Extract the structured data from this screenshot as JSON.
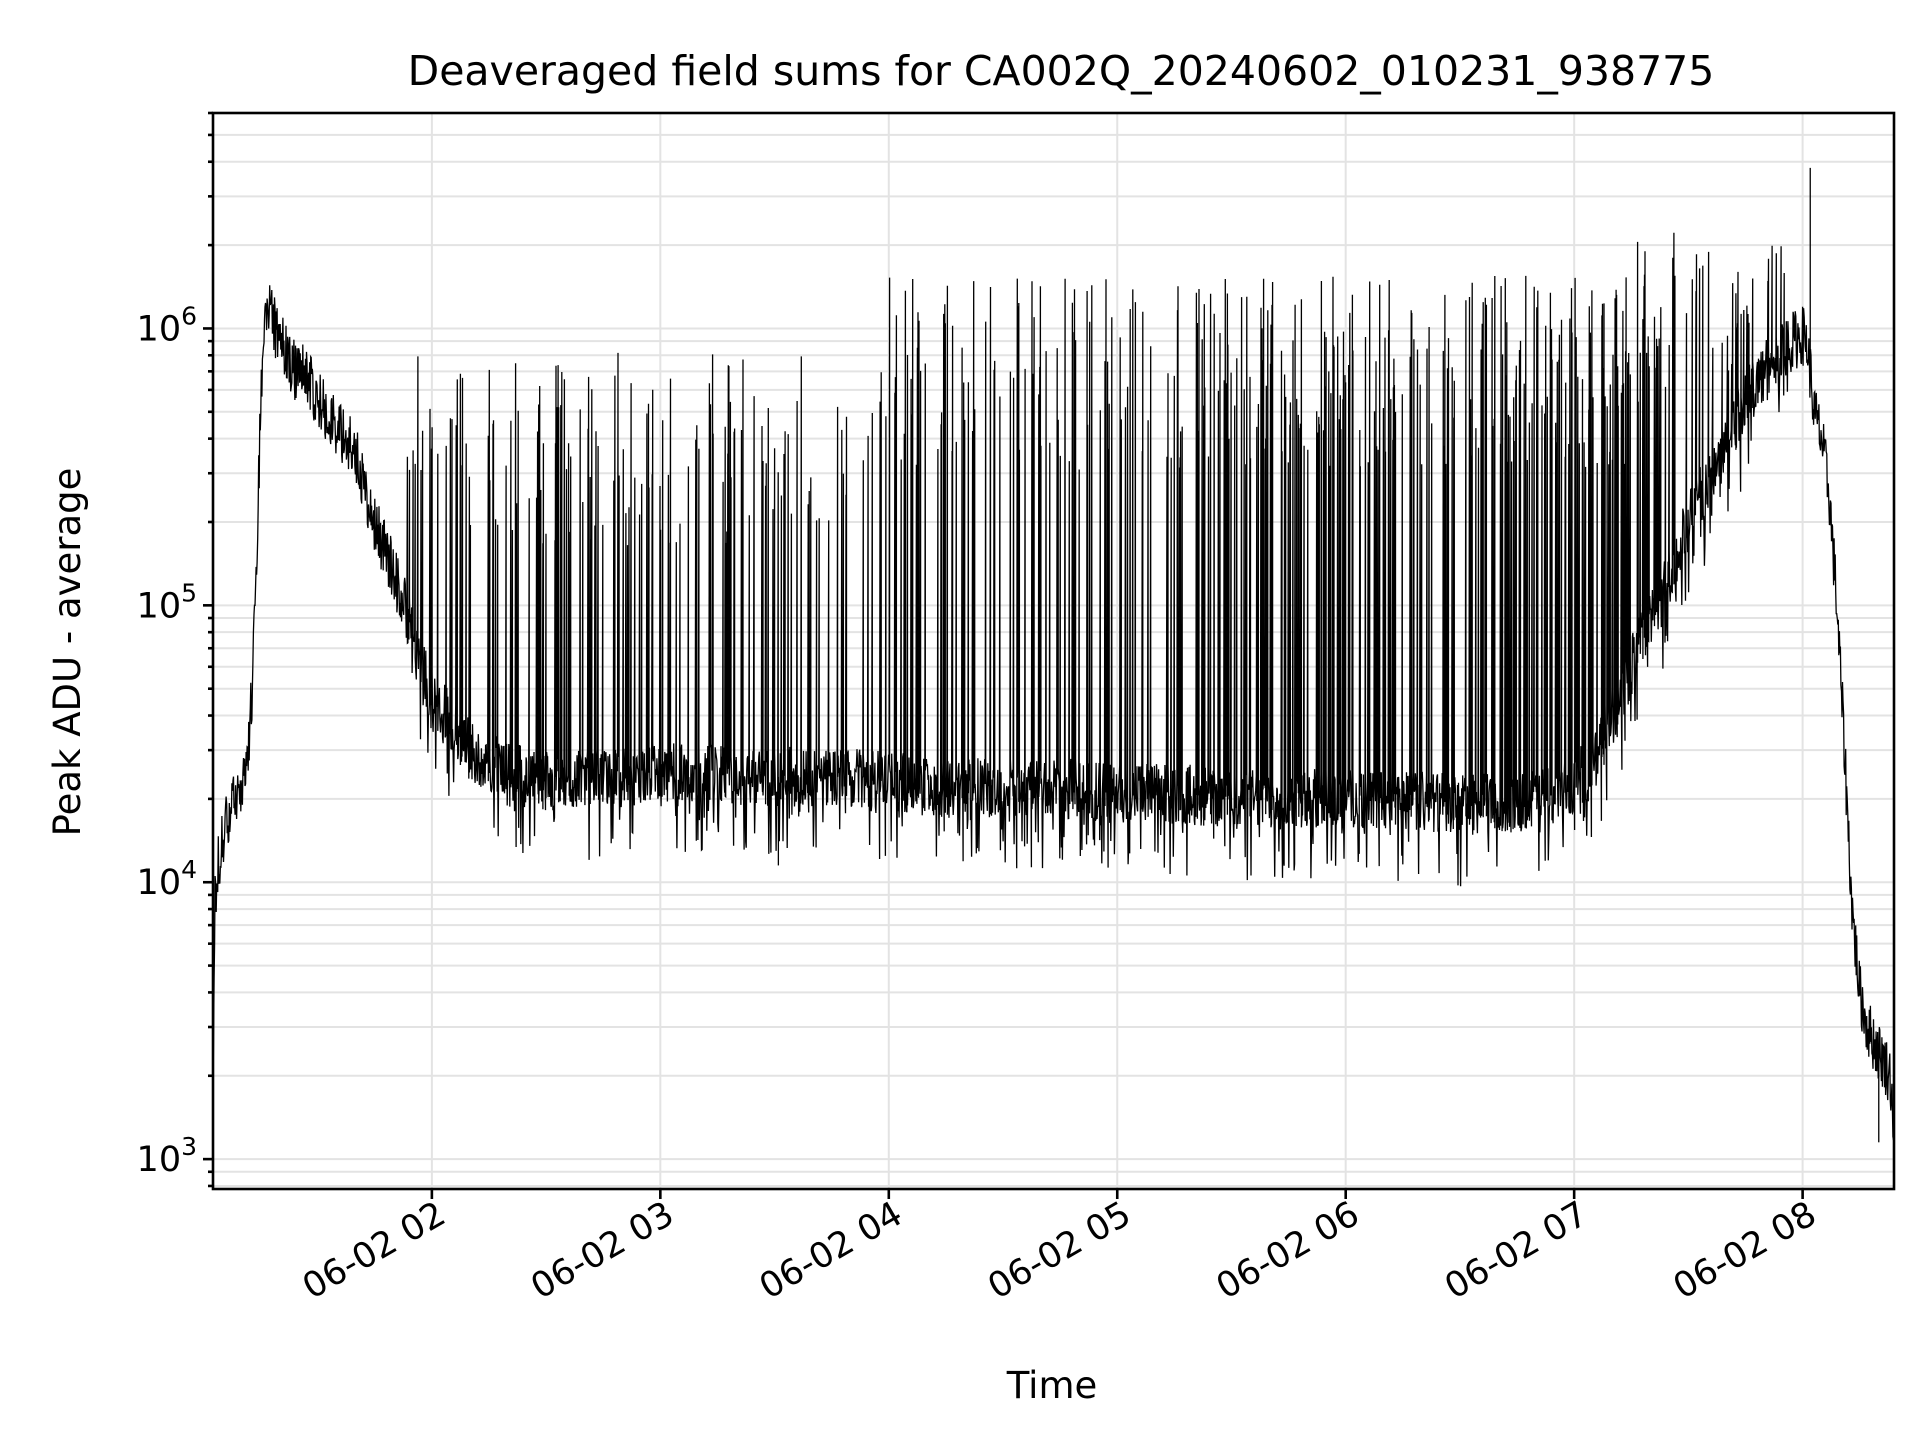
{
  "chart_data": {
    "type": "line",
    "title": "Deaveraged field sums for CA002Q_20240602_010231_938775",
    "xlabel": "Time",
    "ylabel": "Peak ADU - average",
    "yscale": "log",
    "ylim": [
      780,
      6000000
    ],
    "xlim": [
      "2024-06-02 01:02:31",
      "2024-06-02 08:24:00"
    ],
    "grid": true,
    "x_ticks": [
      "06-02 02",
      "06-02 03",
      "06-02 04",
      "06-02 05",
      "06-02 06",
      "06-02 07",
      "06-02 08"
    ],
    "x_tick_times": [
      "2024-06-02 02:00",
      "2024-06-02 03:00",
      "2024-06-02 04:00",
      "2024-06-02 05:00",
      "2024-06-02 06:00",
      "2024-06-02 07:00",
      "2024-06-02 08:00"
    ],
    "y_ticks": [
      {
        "value": 1000,
        "base": "10",
        "exp": "3"
      },
      {
        "value": 10000,
        "base": "10",
        "exp": "4"
      },
      {
        "value": 100000,
        "base": "10",
        "exp": "5"
      },
      {
        "value": 1000000,
        "base": "10",
        "exp": "6"
      }
    ],
    "series": [
      {
        "color": "#000000",
        "x": [
          "2024-06-02 01:02:31",
          "2024-06-02 01:03",
          "2024-06-02 01:04",
          "2024-06-02 01:06",
          "2024-06-02 01:08",
          "2024-06-02 01:10",
          "2024-06-02 01:12",
          "2024-06-02 01:13",
          "2024-06-02 01:14",
          "2024-06-02 01:15",
          "2024-06-02 01:16",
          "2024-06-02 01:17",
          "2024-06-02 01:18",
          "2024-06-02 01:20",
          "2024-06-02 01:22",
          "2024-06-02 01:24",
          "2024-06-02 01:26",
          "2024-06-02 01:30",
          "2024-06-02 01:35",
          "2024-06-02 01:40",
          "2024-06-02 01:45",
          "2024-06-02 01:50",
          "2024-06-02 01:55",
          "2024-06-02 02:00",
          "2024-06-02 02:05",
          "2024-06-02 02:10",
          "2024-06-02 02:15",
          "2024-06-02 02:20",
          "2024-06-02 02:30",
          "2024-06-02 02:45",
          "2024-06-02 03:00",
          "2024-06-02 03:15",
          "2024-06-02 03:30",
          "2024-06-02 03:45",
          "2024-06-02 04:00",
          "2024-06-02 04:15",
          "2024-06-02 04:30",
          "2024-06-02 04:45",
          "2024-06-02 05:00",
          "2024-06-02 05:15",
          "2024-06-02 05:30",
          "2024-06-02 05:45",
          "2024-06-02 06:00",
          "2024-06-02 06:15",
          "2024-06-02 06:30",
          "2024-06-02 06:45",
          "2024-06-02 06:55",
          "2024-06-02 07:00",
          "2024-06-02 07:05",
          "2024-06-02 07:10",
          "2024-06-02 07:15",
          "2024-06-02 07:20",
          "2024-06-02 07:25",
          "2024-06-02 07:30",
          "2024-06-02 07:35",
          "2024-06-02 07:40",
          "2024-06-02 07:45",
          "2024-06-02 07:50",
          "2024-06-02 07:55",
          "2024-06-02 08:00",
          "2024-06-02 08:01",
          "2024-06-02 08:02",
          "2024-06-02 08:03",
          "2024-06-02 08:05",
          "2024-06-02 08:07",
          "2024-06-02 08:09",
          "2024-06-02 08:11",
          "2024-06-02 08:13",
          "2024-06-02 08:15",
          "2024-06-02 08:17",
          "2024-06-02 08:19",
          "2024-06-02 08:21",
          "2024-06-02 08:23",
          "2024-06-02 08:24"
        ],
        "y": [
          2000,
          8000,
          12000,
          16000,
          19000,
          23000,
          30000,
          60000,
          150000,
          500000,
          1000000,
          1200000,
          1100000,
          900000,
          800000,
          700000,
          750000,
          550000,
          450000,
          350000,
          200000,
          130000,
          80000,
          45000,
          38000,
          30000,
          27000,
          25000,
          23000,
          24000,
          25000,
          25000,
          24000,
          24000,
          23000,
          22000,
          22000,
          22000,
          21000,
          21000,
          20000,
          20000,
          20000,
          20000,
          19000,
          19500,
          21000,
          23000,
          27000,
          40000,
          60000,
          90000,
          130000,
          200000,
          280000,
          400000,
          550000,
          700000,
          850000,
          950000,
          900000,
          700000,
          500000,
          400000,
          250000,
          100000,
          30000,
          8000,
          4000,
          3000,
          2600,
          2300,
          2000,
          1300
        ]
      }
    ],
    "peaks": [
      {
        "x": "2024-06-02 08:02",
        "y": 3800000
      },
      {
        "x": "2024-06-02 08:20",
        "y": 1150
      },
      {
        "x": "2024-06-02 03:31",
        "y": 11500
      }
    ]
  }
}
